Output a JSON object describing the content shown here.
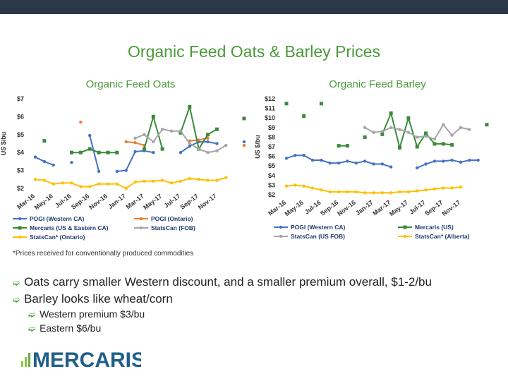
{
  "slide": {
    "title": "Organic Feed Oats & Barley Prices",
    "footnote": "*Prices received for conventionally produced commodities",
    "bullets": [
      "Oats carry smaller Western discount, and a smaller premium overall, $1-2/bu",
      "Barley looks like wheat/corn"
    ],
    "sub_bullets": [
      "Western premium $3/bu",
      "Eastern $6/bu"
    ],
    "logo_text": "MERCARIS",
    "colors": {
      "blue": "#4472c4",
      "orange": "#ed7d31",
      "green": "#3a8a3a",
      "gray": "#a5a5a5",
      "yellow": "#ffc000",
      "accent": "#4a9a3a"
    }
  },
  "chart_data": [
    {
      "type": "line",
      "title": "Organic Feed Oats",
      "ylabel": "US $/bu",
      "ylim": [
        2,
        7
      ],
      "yticks": [
        "$2",
        "$3",
        "$4",
        "$5",
        "$6",
        "$7"
      ],
      "x_labels": [
        "Mar-16",
        "May-16",
        "Jul-16",
        "Sep-16",
        "Nov-16",
        "Jan-17",
        "Mar-17",
        "May-17",
        "Jul-17",
        "Sep-17",
        "Nov-17"
      ],
      "x_count": 24,
      "series": [
        {
          "name": "POGI (Western CA)",
          "color": "#4472c4",
          "values": [
            3.75,
            3.5,
            3.3,
            null,
            3.45,
            null,
            4.95,
            2.95,
            null,
            2.95,
            3.0,
            4.05,
            4.1,
            4.0,
            null,
            null,
            4.0,
            4.35,
            4.6,
            4.6,
            4.5,
            null,
            null,
            4.6
          ]
        },
        {
          "name": "POGI (Ontario)",
          "color": "#ed7d31",
          "values": [
            null,
            null,
            null,
            null,
            null,
            5.7,
            null,
            null,
            null,
            null,
            4.6,
            4.55,
            4.4,
            null,
            null,
            null,
            null,
            4.65,
            4.7,
            4.8,
            null,
            null,
            null,
            4.4
          ]
        },
        {
          "name": "Mercaris (US & Eastern CA)",
          "color": "#3a8a3a",
          "values": [
            null,
            4.65,
            null,
            null,
            4.0,
            4.0,
            4.2,
            4.0,
            4.0,
            4.0,
            null,
            null,
            4.2,
            6.0,
            4.2,
            null,
            5.1,
            6.55,
            4.2,
            5.0,
            5.3,
            null,
            null,
            5.9
          ]
        },
        {
          "name": "StatsCan (FOB)",
          "color": "#a5a5a5",
          "values": [
            null,
            null,
            null,
            null,
            null,
            null,
            null,
            null,
            null,
            null,
            null,
            4.8,
            5.0,
            4.6,
            5.3,
            5.2,
            5.2,
            4.5,
            4.2,
            4.0,
            4.1,
            4.4,
            null,
            null
          ]
        },
        {
          "name": "StatsCan* (Ontario)",
          "color": "#ffc000",
          "values": [
            2.5,
            2.45,
            2.25,
            2.3,
            2.3,
            2.1,
            2.1,
            2.25,
            2.25,
            2.25,
            2.0,
            2.35,
            2.4,
            2.4,
            2.45,
            2.3,
            2.4,
            2.55,
            2.5,
            2.45,
            2.45,
            2.6,
            null,
            null
          ]
        }
      ]
    },
    {
      "type": "line",
      "title": "Organic Feed Barley",
      "ylabel": "US $/bu",
      "ylim": [
        2,
        12
      ],
      "yticks": [
        "$2",
        "$3",
        "$4",
        "$5",
        "$6",
        "$7",
        "$8",
        "$9",
        "$10",
        "$11",
        "$12"
      ],
      "x_labels": [
        "Mar-16",
        "May-16",
        "Jul-16",
        "Sep-16",
        "Nov-16",
        "Jan-17",
        "Mar-17",
        "May-17",
        "Jul-17",
        "Sep-17",
        "Nov-17"
      ],
      "x_count": 24,
      "series": [
        {
          "name": "POGI (Western CA)",
          "color": "#4472c4",
          "values": [
            5.8,
            6.1,
            6.1,
            5.6,
            5.6,
            5.3,
            5.3,
            5.5,
            5.3,
            5.5,
            5.2,
            5.2,
            4.9,
            null,
            null,
            4.8,
            5.2,
            5.5,
            5.5,
            5.6,
            5.4,
            5.6,
            5.6,
            null
          ]
        },
        {
          "name": "Mercaris (US)",
          "color": "#3a8a3a",
          "values": [
            11.5,
            null,
            10.2,
            null,
            11.5,
            null,
            7.1,
            7.1,
            null,
            8.0,
            null,
            8.3,
            10.5,
            6.9,
            10.0,
            7.0,
            8.4,
            7.3,
            7.3,
            7.2,
            null,
            null,
            null,
            9.3
          ]
        },
        {
          "name": "StatsCan (US FOB)",
          "color": "#a5a5a5",
          "values": [
            null,
            null,
            null,
            null,
            null,
            null,
            null,
            null,
            null,
            9.0,
            8.5,
            8.6,
            9.0,
            8.8,
            8.5,
            8.0,
            8.1,
            7.8,
            9.3,
            8.2,
            9.0,
            8.8,
            null,
            null
          ]
        },
        {
          "name": "StatsCan* (Alberta)",
          "color": "#ffc000",
          "values": [
            2.9,
            3.0,
            2.9,
            2.7,
            2.5,
            2.3,
            2.3,
            2.3,
            2.3,
            2.2,
            2.2,
            2.2,
            2.2,
            2.3,
            2.3,
            2.4,
            2.5,
            2.6,
            2.7,
            2.7,
            2.8,
            null,
            null,
            null
          ]
        }
      ]
    }
  ]
}
